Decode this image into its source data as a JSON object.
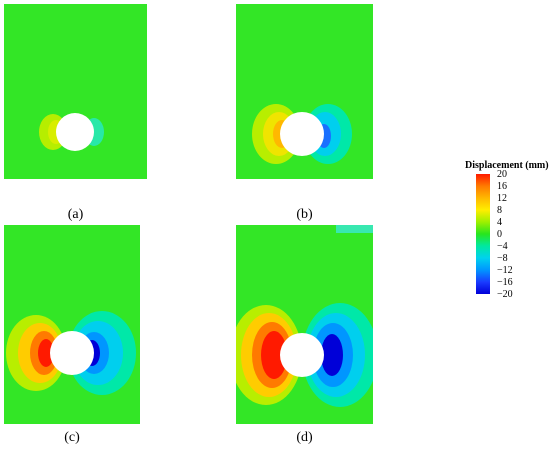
{
  "panels": [
    {
      "label": "(a)",
      "field": {
        "intensity": 0.25,
        "spread": 0.75
      }
    },
    {
      "label": "(b)",
      "field": {
        "intensity": 0.55,
        "spread": 1.0
      }
    },
    {
      "label": "(c)",
      "field": {
        "intensity": 1.0,
        "spread": 1.1
      }
    },
    {
      "label": "(d)",
      "field": {
        "intensity": 1.2,
        "spread": 1.4
      }
    }
  ],
  "legend": {
    "title": "Displacement (mm)",
    "ticks": [
      "20",
      "16",
      "12",
      "8",
      "4",
      "0",
      "−4",
      "−8",
      "−12",
      "−16",
      "−20"
    ],
    "colors": [
      "#ff1a00",
      "#ff7a00",
      "#ffb800",
      "#ffee00",
      "#9ef000",
      "#27e61e",
      "#00e8a0",
      "#00d2ee",
      "#0096ff",
      "#1a3cff",
      "#0000d8"
    ]
  }
}
